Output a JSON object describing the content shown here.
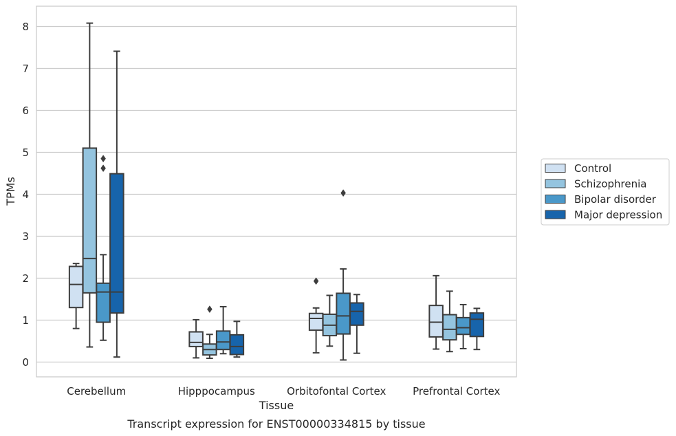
{
  "chart_data": {
    "type": "box",
    "caption": "Transcript expression for ENST00000334815 by tissue",
    "xlabel": "Tissue",
    "ylabel": "TPMs",
    "ylim": [
      -0.35,
      8.5
    ],
    "yticks": [
      0,
      1,
      2,
      3,
      4,
      5,
      6,
      7,
      8
    ],
    "grid": "horizontal",
    "legend_position": "right",
    "categories": [
      "Cerebellum",
      "Hipppocampus",
      "Orbitofontal Cortex",
      "Prefrontal Cortex"
    ],
    "series": [
      {
        "name": "Control",
        "color": "#d0e1f2",
        "boxes": [
          {
            "whisker_low": 0.8,
            "q1": 1.3,
            "median": 1.85,
            "q3": 2.28,
            "whisker_high": 2.35,
            "outliers": []
          },
          {
            "whisker_low": 0.1,
            "q1": 0.37,
            "median": 0.47,
            "q3": 0.72,
            "whisker_high": 1.01,
            "outliers": []
          },
          {
            "whisker_low": 0.22,
            "q1": 0.76,
            "median": 1.04,
            "q3": 1.16,
            "whisker_high": 1.29,
            "outliers": [
              1.93
            ]
          },
          {
            "whisker_low": 0.31,
            "q1": 0.6,
            "median": 0.95,
            "q3": 1.35,
            "whisker_high": 2.06,
            "outliers": []
          }
        ]
      },
      {
        "name": "Schizophrenia",
        "color": "#94c4df",
        "boxes": [
          {
            "whisker_low": 0.36,
            "q1": 1.65,
            "median": 2.47,
            "q3": 5.1,
            "whisker_high": 8.08,
            "outliers": []
          },
          {
            "whisker_low": 0.09,
            "q1": 0.17,
            "median": 0.3,
            "q3": 0.43,
            "whisker_high": 0.66,
            "outliers": [
              1.26
            ]
          },
          {
            "whisker_low": 0.38,
            "q1": 0.63,
            "median": 0.88,
            "q3": 1.14,
            "whisker_high": 1.59,
            "outliers": []
          },
          {
            "whisker_low": 0.25,
            "q1": 0.53,
            "median": 0.78,
            "q3": 1.13,
            "whisker_high": 1.69,
            "outliers": []
          }
        ]
      },
      {
        "name": "Bipolar disorder",
        "color": "#4a98c9",
        "boxes": [
          {
            "whisker_low": 0.52,
            "q1": 0.95,
            "median": 1.67,
            "q3": 1.88,
            "whisker_high": 2.56,
            "outliers": [
              4.62,
              4.85
            ]
          },
          {
            "whisker_low": 0.2,
            "q1": 0.3,
            "median": 0.48,
            "q3": 0.74,
            "whisker_high": 1.32,
            "outliers": []
          },
          {
            "whisker_low": 0.05,
            "q1": 0.67,
            "median": 1.1,
            "q3": 1.64,
            "whisker_high": 2.22,
            "outliers": [
              4.03
            ]
          },
          {
            "whisker_low": 0.32,
            "q1": 0.66,
            "median": 0.82,
            "q3": 1.06,
            "whisker_high": 1.37,
            "outliers": []
          }
        ]
      },
      {
        "name": "Major depression",
        "color": "#1764ab",
        "boxes": [
          {
            "whisker_low": 0.12,
            "q1": 1.17,
            "median": 1.67,
            "q3": 4.49,
            "whisker_high": 7.41,
            "outliers": []
          },
          {
            "whisker_low": 0.12,
            "q1": 0.18,
            "median": 0.37,
            "q3": 0.65,
            "whisker_high": 0.97,
            "outliers": []
          },
          {
            "whisker_low": 0.21,
            "q1": 0.88,
            "median": 1.21,
            "q3": 1.41,
            "whisker_high": 1.61,
            "outliers": []
          },
          {
            "whisker_low": 0.3,
            "q1": 0.61,
            "median": 1.02,
            "q3": 1.17,
            "whisker_high": 1.28,
            "outliers": []
          }
        ]
      }
    ]
  },
  "colors": {
    "edge": "#3d3d3d",
    "grid": "#cccccc",
    "frame": "#cccccc"
  }
}
